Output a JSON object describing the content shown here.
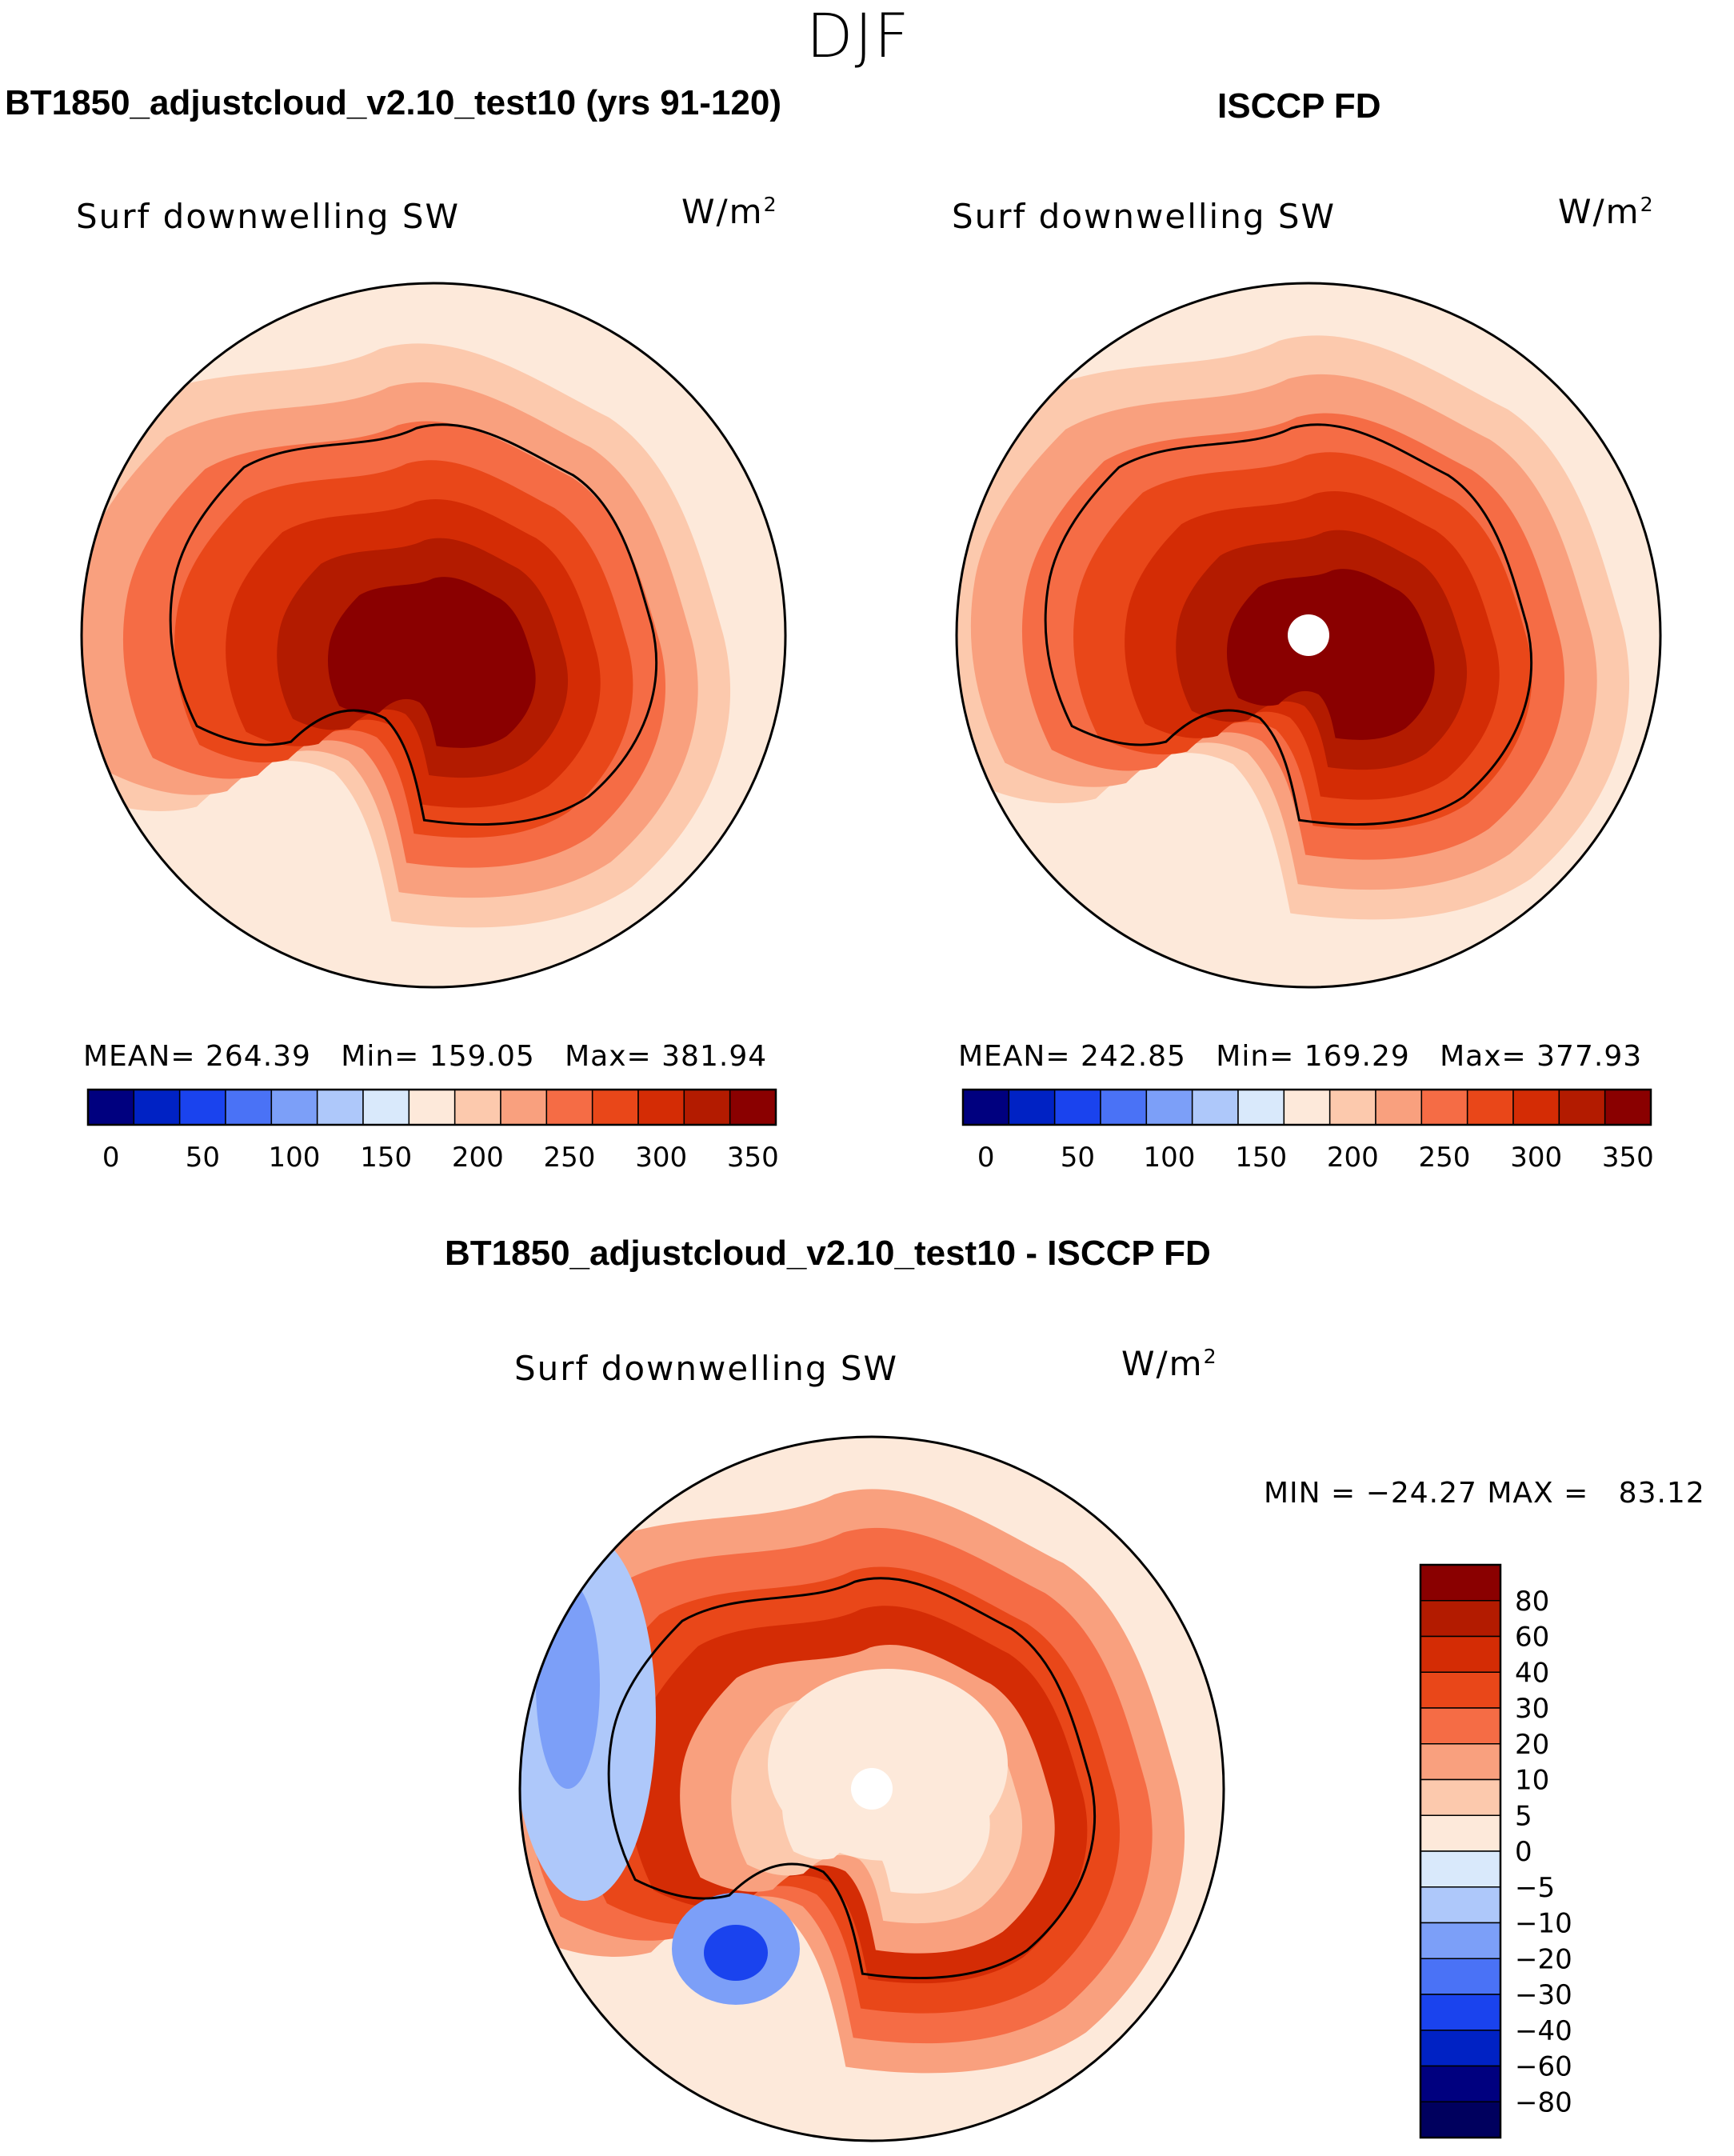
{
  "figure": {
    "title": "DJF",
    "colors": {
      "land_outline": "#000000",
      "pole_mask": "#ffffff"
    }
  },
  "chart_data": [
    {
      "type": "heatmap",
      "panel": "model",
      "title": "BT1850_adjustcloud_v2.10_test10 (yrs 91-120)",
      "variable": "Surf downwelling SW",
      "units": "W/m",
      "units_exp": "2",
      "projection": "south-polar stereographic",
      "stats": {
        "mean_label": "MEAN=",
        "mean": "264.39",
        "min_label": "Min=",
        "min": "159.05",
        "max_label": "Max=",
        "max": "381.94"
      },
      "colorbar": {
        "orientation": "horizontal",
        "ticks": [
          "0",
          "50",
          "100",
          "150",
          "200",
          "250",
          "300",
          "350"
        ],
        "colors": [
          "#00007f",
          "#0022c4",
          "#1a43ee",
          "#4a72f6",
          "#7c9ff8",
          "#aec8fa",
          "#d9e9fb",
          "#fde9da",
          "#fcc9ad",
          "#f9a07e",
          "#f56c45",
          "#e94719",
          "#d42c05",
          "#b31b00",
          "#8a0000"
        ]
      },
      "rings": [
        {
          "value": 200,
          "color": "#fde9da"
        },
        {
          "value": 215,
          "color": "#fcc9ad"
        },
        {
          "value": 245,
          "color": "#f9a07e"
        },
        {
          "value": 280,
          "color": "#f56c45"
        },
        {
          "value": 310,
          "color": "#e94719"
        },
        {
          "value": 340,
          "color": "#d42c05"
        },
        {
          "value": 360,
          "color": "#b31b00"
        },
        {
          "value": 375,
          "color": "#8a0000"
        }
      ]
    },
    {
      "type": "heatmap",
      "panel": "obs",
      "title": "ISCCP FD",
      "variable": "Surf downwelling SW",
      "units": "W/m",
      "units_exp": "2",
      "projection": "south-polar stereographic",
      "stats": {
        "mean_label": "MEAN=",
        "mean": "242.85",
        "min_label": "Min=",
        "min": "169.29",
        "max_label": "Max=",
        "max": "377.93"
      },
      "colorbar": {
        "orientation": "horizontal",
        "ticks": [
          "0",
          "50",
          "100",
          "150",
          "200",
          "250",
          "300",
          "350"
        ],
        "colors": [
          "#00007f",
          "#0022c4",
          "#1a43ee",
          "#4a72f6",
          "#7c9ff8",
          "#aec8fa",
          "#d9e9fb",
          "#fde9da",
          "#fcc9ad",
          "#f9a07e",
          "#f56c45",
          "#e94719",
          "#d42c05",
          "#b31b00",
          "#8a0000"
        ]
      },
      "rings": [
        {
          "value": 195,
          "color": "#fde9da"
        },
        {
          "value": 215,
          "color": "#fcc9ad"
        },
        {
          "value": 240,
          "color": "#f9a07e"
        },
        {
          "value": 270,
          "color": "#f56c45"
        },
        {
          "value": 300,
          "color": "#e94719"
        },
        {
          "value": 325,
          "color": "#d42c05"
        },
        {
          "value": 350,
          "color": "#b31b00"
        },
        {
          "value": 370,
          "color": "#8a0000"
        }
      ]
    },
    {
      "type": "heatmap",
      "panel": "diff",
      "title": "BT1850_adjustcloud_v2.10_test10 - ISCCP FD",
      "variable": "Surf downwelling SW",
      "units": "W/m",
      "units_exp": "2",
      "projection": "south-polar stereographic",
      "stats": {
        "min_label": "MIN =",
        "min": "−24.27",
        "max_label": "MAX =",
        "max": "83.12"
      },
      "colorbar": {
        "orientation": "vertical",
        "ticks": [
          "80",
          "60",
          "40",
          "30",
          "20",
          "10",
          "5",
          "0",
          "−5",
          "−10",
          "−20",
          "−30",
          "−40",
          "−60",
          "−80"
        ],
        "colors": [
          "#8a0000",
          "#b31b00",
          "#d42c05",
          "#e94719",
          "#f56c45",
          "#f9a07e",
          "#fcc9ad",
          "#fde9da",
          "#d9e9fb",
          "#aec8fa",
          "#7c9ff8",
          "#4a72f6",
          "#1a43ee",
          "#0022c4",
          "#00007f",
          "#00005e"
        ]
      },
      "rings": [
        {
          "value": 5,
          "color": "#fde9da"
        },
        {
          "value": 25,
          "color": "#f9a07e"
        },
        {
          "value": 35,
          "color": "#f56c45"
        },
        {
          "value": 45,
          "color": "#e94719"
        },
        {
          "value": 40,
          "color": "#d42c05"
        },
        {
          "value": 20,
          "color": "#f9a07e"
        },
        {
          "value": 8,
          "color": "#fcc9ad"
        },
        {
          "value": 2,
          "color": "#fde9da"
        }
      ]
    }
  ]
}
